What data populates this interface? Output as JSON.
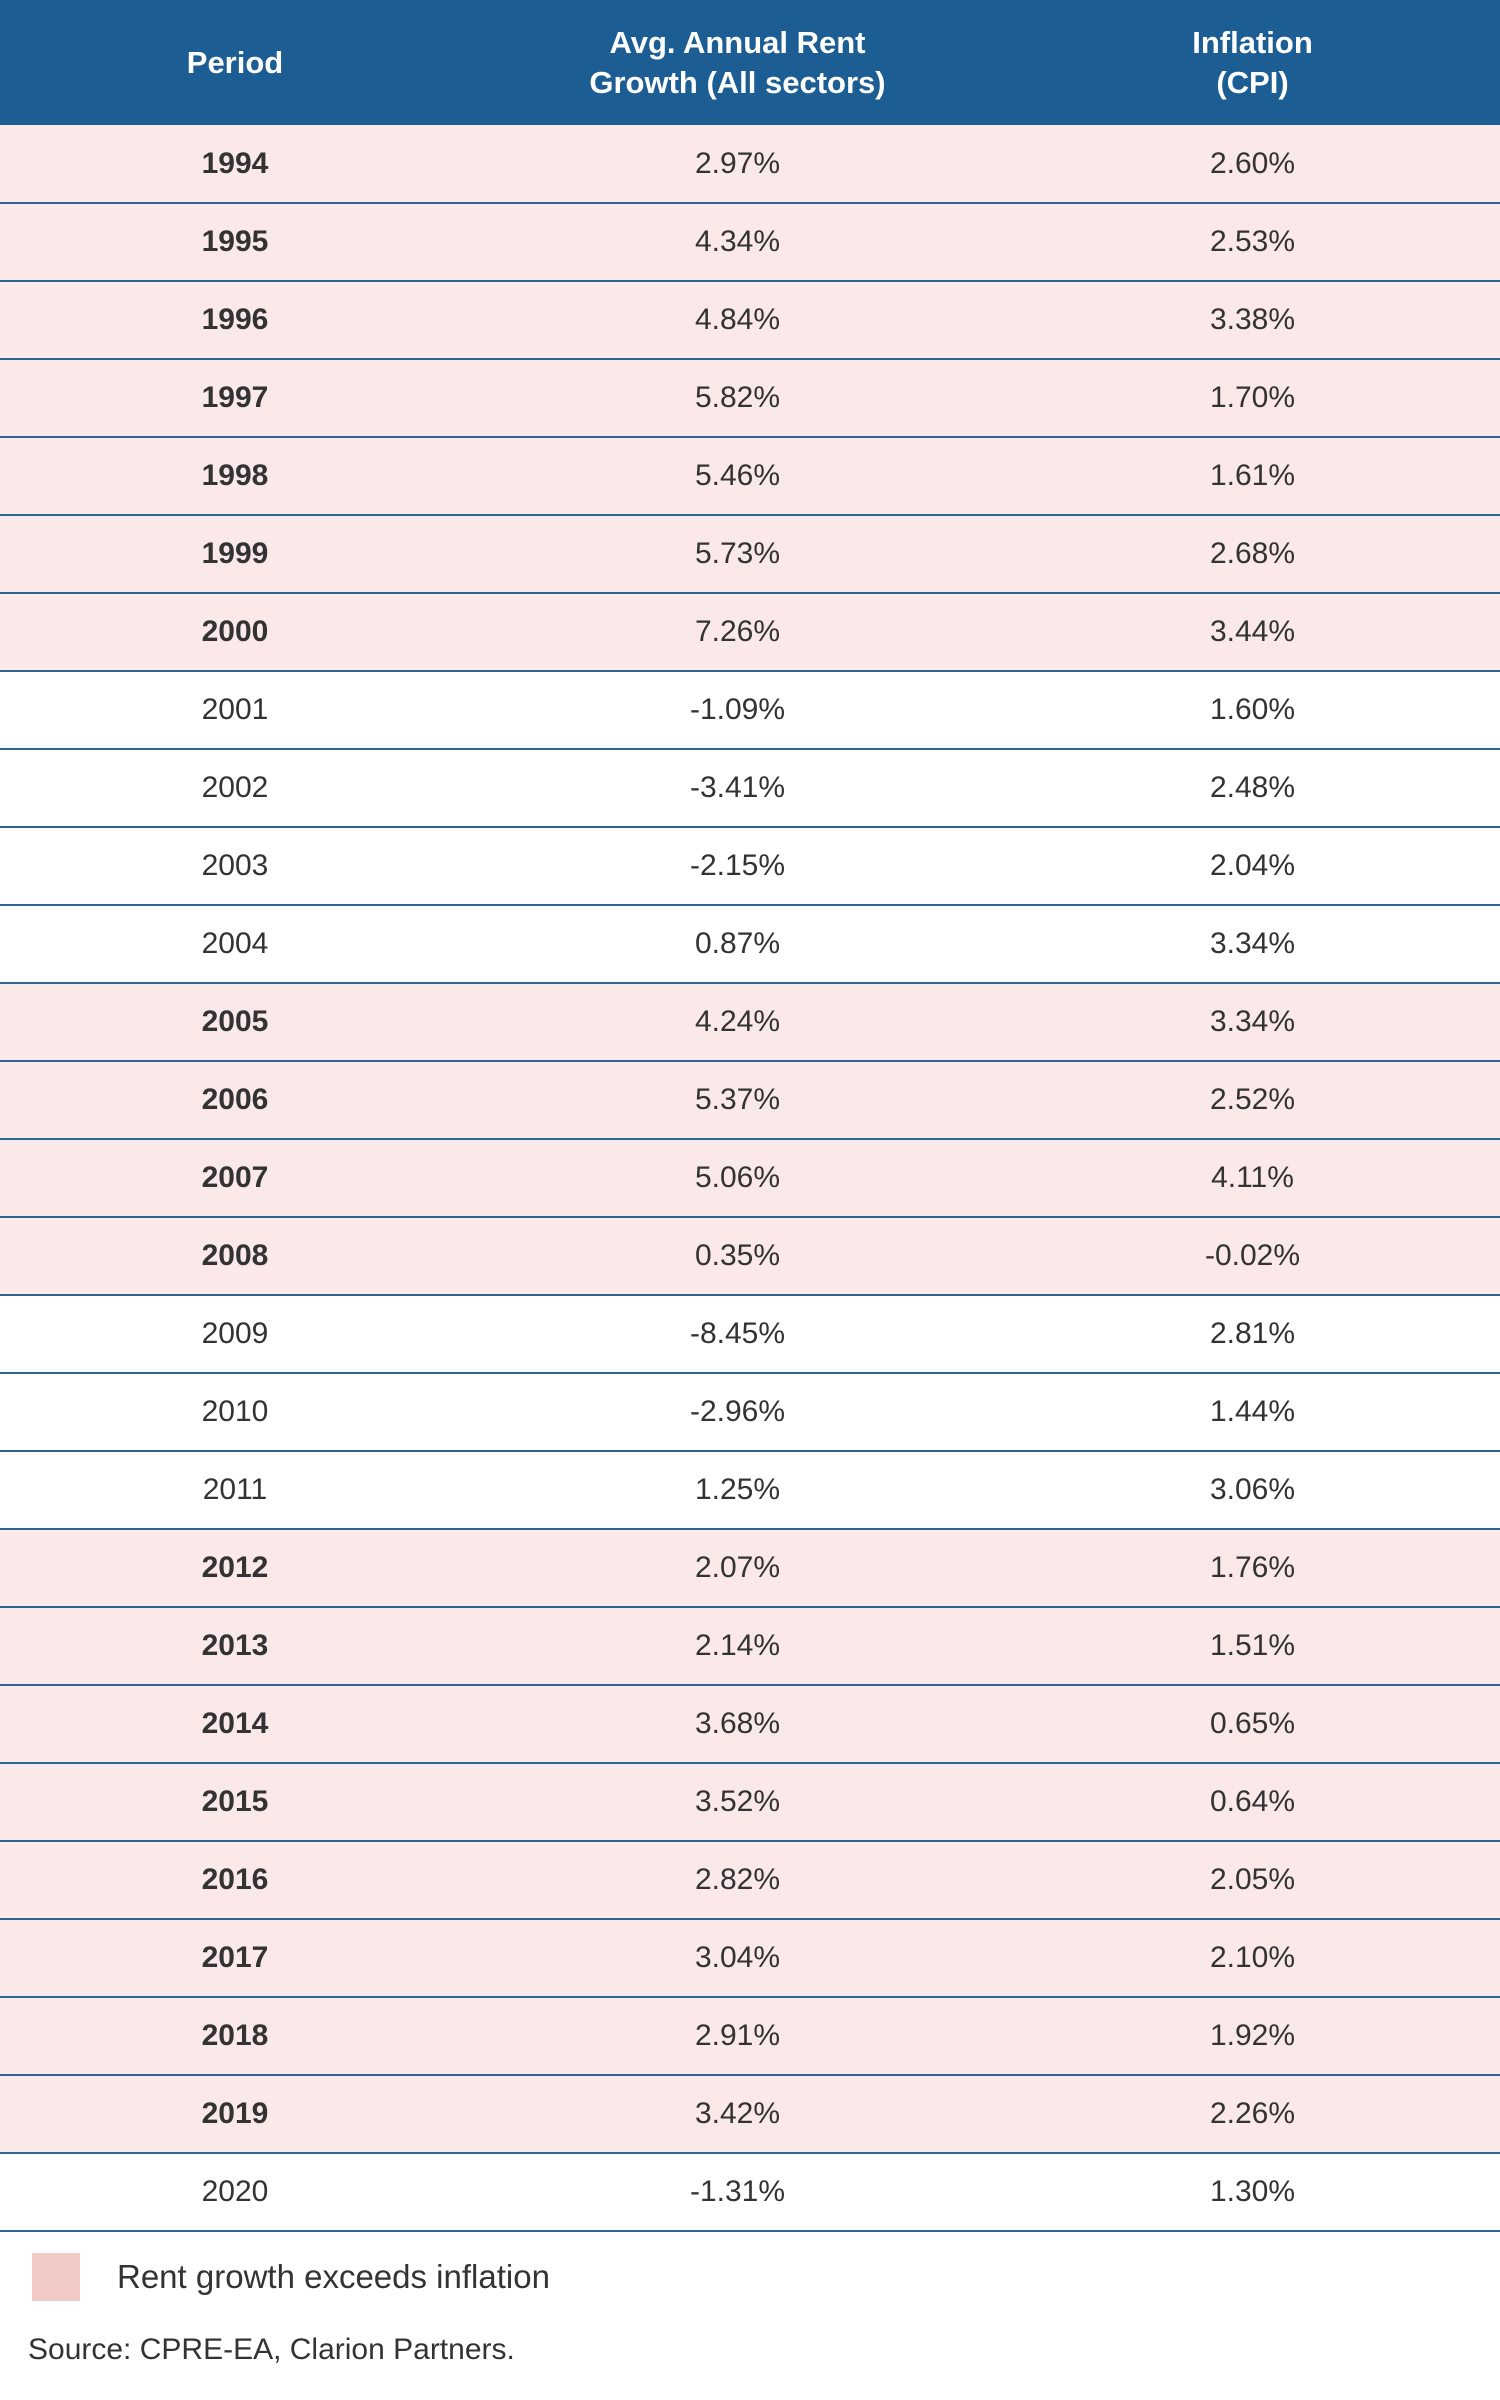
{
  "chart_data": {
    "type": "table",
    "columns": [
      "Period",
      "Avg. Annual Rent Growth (All sectors)",
      "Inflation (CPI)"
    ],
    "rows": [
      {
        "period": "1994",
        "rent_growth": "2.97%",
        "inflation": "2.60%",
        "exceeds": true
      },
      {
        "period": "1995",
        "rent_growth": "4.34%",
        "inflation": "2.53%",
        "exceeds": true
      },
      {
        "period": "1996",
        "rent_growth": "4.84%",
        "inflation": "3.38%",
        "exceeds": true
      },
      {
        "period": "1997",
        "rent_growth": "5.82%",
        "inflation": "1.70%",
        "exceeds": true
      },
      {
        "period": "1998",
        "rent_growth": "5.46%",
        "inflation": "1.61%",
        "exceeds": true
      },
      {
        "period": "1999",
        "rent_growth": "5.73%",
        "inflation": "2.68%",
        "exceeds": true
      },
      {
        "period": "2000",
        "rent_growth": "7.26%",
        "inflation": "3.44%",
        "exceeds": true
      },
      {
        "period": "2001",
        "rent_growth": "-1.09%",
        "inflation": "1.60%",
        "exceeds": false
      },
      {
        "period": "2002",
        "rent_growth": "-3.41%",
        "inflation": "2.48%",
        "exceeds": false
      },
      {
        "period": "2003",
        "rent_growth": "-2.15%",
        "inflation": "2.04%",
        "exceeds": false
      },
      {
        "period": "2004",
        "rent_growth": "0.87%",
        "inflation": "3.34%",
        "exceeds": false
      },
      {
        "period": "2005",
        "rent_growth": "4.24%",
        "inflation": "3.34%",
        "exceeds": true
      },
      {
        "period": "2006",
        "rent_growth": "5.37%",
        "inflation": "2.52%",
        "exceeds": true
      },
      {
        "period": "2007",
        "rent_growth": "5.06%",
        "inflation": "4.11%",
        "exceeds": true
      },
      {
        "period": "2008",
        "rent_growth": "0.35%",
        "inflation": "-0.02%",
        "exceeds": true
      },
      {
        "period": "2009",
        "rent_growth": "-8.45%",
        "inflation": "2.81%",
        "exceeds": false
      },
      {
        "period": "2010",
        "rent_growth": "-2.96%",
        "inflation": "1.44%",
        "exceeds": false
      },
      {
        "period": "2011",
        "rent_growth": "1.25%",
        "inflation": "3.06%",
        "exceeds": false
      },
      {
        "period": "2012",
        "rent_growth": "2.07%",
        "inflation": "1.76%",
        "exceeds": true
      },
      {
        "period": "2013",
        "rent_growth": "2.14%",
        "inflation": "1.51%",
        "exceeds": true
      },
      {
        "period": "2014",
        "rent_growth": "3.68%",
        "inflation": "0.65%",
        "exceeds": true
      },
      {
        "period": "2015",
        "rent_growth": "3.52%",
        "inflation": "0.64%",
        "exceeds": true
      },
      {
        "period": "2016",
        "rent_growth": "2.82%",
        "inflation": "2.05%",
        "exceeds": true
      },
      {
        "period": "2017",
        "rent_growth": "3.04%",
        "inflation": "2.10%",
        "exceeds": true
      },
      {
        "period": "2018",
        "rent_growth": "2.91%",
        "inflation": "1.92%",
        "exceeds": true
      },
      {
        "period": "2019",
        "rent_growth": "3.42%",
        "inflation": "2.26%",
        "exceeds": true
      },
      {
        "period": "2020",
        "rent_growth": "-1.31%",
        "inflation": "1.30%",
        "exceeds": false
      }
    ]
  },
  "header": {
    "period": "Period",
    "rent_growth_line1": "Avg. Annual Rent",
    "rent_growth_line2": "Growth (All sectors)",
    "inflation_line1": "Inflation",
    "inflation_line2": "(CPI)"
  },
  "legend": {
    "label": "Rent growth exceeds inflation",
    "swatch_color": "#f2cbc8"
  },
  "colors": {
    "header_background": "#1c5e94",
    "highlight_row": "#fae9e8",
    "row_divider": "#2f6593"
  },
  "source": "Source: CPRE-EA, Clarion Partners."
}
